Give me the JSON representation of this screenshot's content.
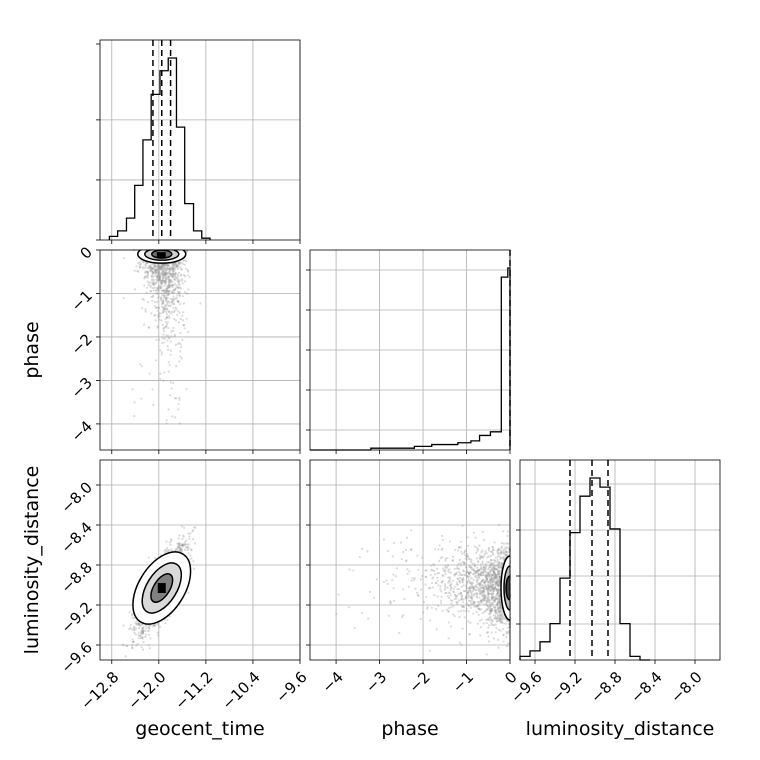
{
  "chart_data": {
    "type": "corner",
    "parameters": [
      "geocent_time",
      "phase",
      "luminosity_distance"
    ],
    "xlabels": [
      "geocent_time",
      "phase",
      "luminosity_distance"
    ],
    "ylabels": [
      "phase",
      "luminosity_distance"
    ],
    "ranges": {
      "geocent_time": [
        -13.0,
        -9.6
      ],
      "phase": [
        -4.6,
        0.0
      ],
      "luminosity_distance": [
        -9.75,
        -7.75
      ]
    },
    "ticks": {
      "geocent_time": {
        "values": [
          -12.8,
          -12.0,
          -11.2,
          -10.4,
          -9.6
        ],
        "labels": [
          "−12.8",
          "−12.0",
          "−11.2",
          "−10.4",
          "−9.6"
        ]
      },
      "phase_x": {
        "values": [
          -4,
          -3,
          -2,
          -1,
          0
        ],
        "labels": [
          "−4",
          "−3",
          "−2",
          "−1",
          "0"
        ]
      },
      "phase_y": {
        "values": [
          0,
          -1,
          -2,
          -3,
          -4
        ],
        "labels": [
          "0",
          "−1",
          "−2",
          "−3",
          "−4"
        ]
      },
      "luminosity_distance": {
        "values": [
          -9.6,
          -9.2,
          -8.8,
          -8.4,
          -8.0
        ],
        "labels": [
          "−9.6",
          "−9.2",
          "−8.8",
          "−8.4",
          "−8.0"
        ]
      }
    },
    "quantiles": {
      "geocent_time": [
        -12.1,
        -11.95,
        -11.8
      ],
      "phase": [
        0.0
      ],
      "luminosity_distance": [
        -9.25,
        -9.03,
        -8.87
      ]
    },
    "histograms": {
      "geocent_time": {
        "bin_edges": [
          -12.84,
          -12.7,
          -12.55,
          -12.41,
          -12.27,
          -12.13,
          -11.98,
          -11.84,
          -11.7,
          -11.56,
          -11.41,
          -11.27,
          -11.13
        ],
        "counts": [
          0.02,
          0.05,
          0.12,
          0.3,
          0.55,
          0.8,
          0.93,
          1.0,
          0.62,
          0.2,
          0.05,
          0.01
        ]
      },
      "phase": {
        "bin_edges": [
          -4.6,
          -3.2,
          -2.2,
          -1.8,
          -1.5,
          -1.2,
          -0.9,
          -0.7,
          -0.45,
          -0.2,
          -0.05,
          0.0
        ],
        "counts": [
          0.0,
          0.01,
          0.02,
          0.03,
          0.03,
          0.04,
          0.05,
          0.08,
          0.1,
          0.95,
          1.0
        ]
      },
      "luminosity_distance": {
        "bin_edges": [
          -9.75,
          -9.65,
          -9.55,
          -9.45,
          -9.35,
          -9.25,
          -9.15,
          -9.05,
          -8.95,
          -8.85,
          -8.75,
          -8.65,
          -8.55,
          -8.45
        ],
        "counts": [
          0.02,
          0.05,
          0.1,
          0.2,
          0.45,
          0.7,
          0.9,
          1.0,
          0.95,
          0.72,
          0.2,
          0.02,
          0.0
        ]
      }
    },
    "contour_centers": {
      "geocent_time_vs_phase": {
        "x": -11.95,
        "y": -0.05
      },
      "geocent_time_vs_luminosity_distance": {
        "x": -11.95,
        "y": -9.03
      },
      "phase_vs_luminosity_distance": {
        "x": -0.05,
        "y": -9.03
      }
    },
    "grid": true
  }
}
